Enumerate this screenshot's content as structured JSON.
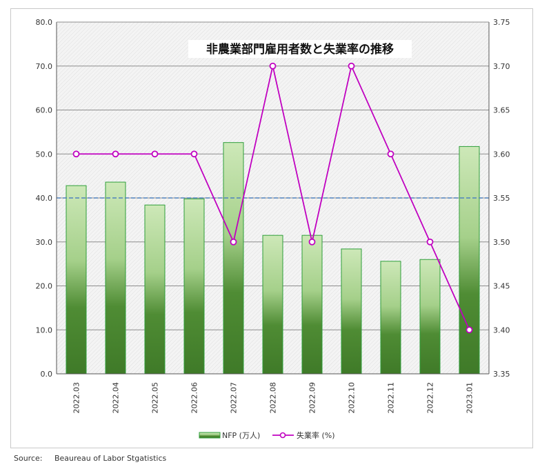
{
  "chart_data": {
    "type": "bar+line",
    "title": "非農業部門雇用者数と失業率の推移",
    "categories": [
      "2022.03",
      "2022.04",
      "2022.05",
      "2022.06",
      "2022.07",
      "2022.08",
      "2022.09",
      "2022.10",
      "2022.11",
      "2022.12",
      "2023.01"
    ],
    "series": [
      {
        "name": "NFP (万人)",
        "type": "bar",
        "axis": "left",
        "values": [
          42.8,
          43.6,
          38.4,
          39.8,
          52.6,
          31.5,
          31.5,
          28.4,
          25.6,
          26.0,
          51.7
        ]
      },
      {
        "name": "失業率 (%)",
        "type": "line",
        "axis": "right",
        "values": [
          3.6,
          3.6,
          3.6,
          3.6,
          3.5,
          3.7,
          3.5,
          3.7,
          3.6,
          3.5,
          3.4
        ]
      }
    ],
    "left_axis": {
      "ylim": [
        0,
        80
      ],
      "ticks": [
        "0.0",
        "10.0",
        "20.0",
        "30.0",
        "40.0",
        "50.0",
        "60.0",
        "70.0",
        "80.0"
      ]
    },
    "right_axis": {
      "ylim": [
        3.35,
        3.75
      ],
      "ticks": [
        "3.35",
        "3.40",
        "3.45",
        "3.50",
        "3.55",
        "3.60",
        "3.65",
        "3.70",
        "3.75"
      ]
    },
    "reference_line": {
      "axis": "left",
      "value": 40
    },
    "grid": true,
    "legend": "bottom-center",
    "colors": {
      "bar_dark": "#3f7a28",
      "bar_light": "#c9e6b4",
      "bar_edge": "#2e9e3a",
      "line": "#c000c0",
      "reference": "#4f81bd"
    }
  },
  "source": "Source:     Beaureau of Labor Stgatistics"
}
